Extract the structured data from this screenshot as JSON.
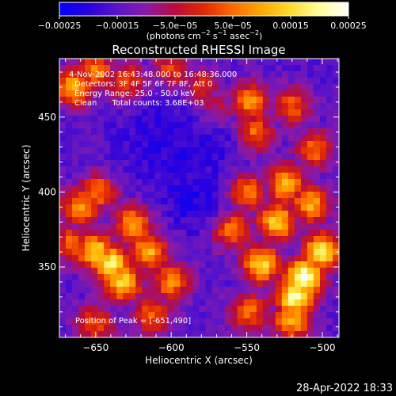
{
  "chart_data": {
    "type": "heatmap",
    "title": "Reconstructed RHESSI Image",
    "xlabel": "Heliocentric X (arcsec)",
    "ylabel": "Heliocentric Y (arcsec)",
    "xlim": [
      -674,
      -489
    ],
    "ylim": [
      303,
      489
    ],
    "x_ticks": [
      -650,
      -600,
      -550,
      -500
    ],
    "y_ticks": [
      350,
      400,
      450
    ],
    "x_tick_labels": [
      "−650",
      "−600",
      "−550",
      "−500"
    ],
    "y_tick_labels": [
      "350",
      "400",
      "450"
    ],
    "colorbar": {
      "range": [
        -0.00025,
        0.00025
      ],
      "ticks": [
        -0.00025,
        -0.00015,
        -5e-05,
        5e-05,
        0.00015,
        0.00025
      ],
      "tick_labels": [
        "−0.00025",
        "−0.00015",
        "−5.0e−05",
        "5.0e−05",
        "0.00015",
        "0.00025"
      ],
      "units_main": "(photons cm",
      "units_sup1": "−2",
      "units_mid1": " s",
      "units_sup2": "−1",
      "units_mid2": " asec",
      "units_sup3": "−2",
      "units_end": ")",
      "colormap": [
        "#0000ff",
        "#2a00dd",
        "#5a14c8",
        "#8a1aa8",
        "#b80c3c",
        "#e02a00",
        "#ff6a00",
        "#ffa800",
        "#ffdc30",
        "#ffff9a",
        "#ffffff"
      ]
    },
    "annotations": {
      "time_range": "4-Nov-2002 16:43:48.000 to 16:48:36.000",
      "detectors": "Detectors: 3F 4F 5F 6F 7F 8F, Att 0",
      "energy": "Energy Range: 25.0 - 50.0 keV",
      "clean": "Clean      Total counts: 3.68E+03",
      "peak": "Position of Peak = [-651,490]"
    },
    "image_level_note": "values are normalized color levels 0 (most negative, blue) to 1 (peak, white)",
    "bright_regions": [
      {
        "x": -512,
        "y": 343,
        "level": 0.97
      },
      {
        "x": -518,
        "y": 330,
        "level": 0.92
      },
      {
        "x": -500,
        "y": 360,
        "level": 0.85
      },
      {
        "x": -540,
        "y": 352,
        "level": 0.8
      },
      {
        "x": -530,
        "y": 380,
        "level": 0.78
      },
      {
        "x": -524,
        "y": 405,
        "level": 0.74
      },
      {
        "x": -508,
        "y": 392,
        "level": 0.7
      },
      {
        "x": -550,
        "y": 400,
        "level": 0.66
      },
      {
        "x": -560,
        "y": 375,
        "level": 0.64
      },
      {
        "x": -520,
        "y": 315,
        "level": 0.72
      },
      {
        "x": -548,
        "y": 320,
        "level": 0.6
      },
      {
        "x": -505,
        "y": 428,
        "level": 0.58
      },
      {
        "x": -545,
        "y": 440,
        "level": 0.62
      },
      {
        "x": -548,
        "y": 460,
        "level": 0.66
      },
      {
        "x": -520,
        "y": 457,
        "level": 0.56
      },
      {
        "x": -640,
        "y": 352,
        "level": 0.86
      },
      {
        "x": -650,
        "y": 360,
        "level": 0.8
      },
      {
        "x": -632,
        "y": 340,
        "level": 0.78
      },
      {
        "x": -615,
        "y": 360,
        "level": 0.72
      },
      {
        "x": -625,
        "y": 378,
        "level": 0.7
      },
      {
        "x": -600,
        "y": 340,
        "level": 0.64
      },
      {
        "x": -660,
        "y": 390,
        "level": 0.66
      },
      {
        "x": -665,
        "y": 365,
        "level": 0.6
      },
      {
        "x": -612,
        "y": 318,
        "level": 0.58
      },
      {
        "x": -650,
        "y": 312,
        "level": 0.55
      },
      {
        "x": -648,
        "y": 400,
        "level": 0.62
      },
      {
        "x": -665,
        "y": 470,
        "level": 0.7
      },
      {
        "x": -650,
        "y": 480,
        "level": 0.64
      },
      {
        "x": -630,
        "y": 474,
        "level": 0.56
      },
      {
        "x": -600,
        "y": 482,
        "level": 0.52
      },
      {
        "x": -580,
        "y": 470,
        "level": 0.5
      },
      {
        "x": -570,
        "y": 455,
        "level": 0.44
      },
      {
        "x": -590,
        "y": 415,
        "level": 0.4
      }
    ],
    "dark_regions": [
      {
        "x": -595,
        "y": 420,
        "level": 0.04
      },
      {
        "x": -605,
        "y": 440,
        "level": 0.08
      },
      {
        "x": -585,
        "y": 395,
        "level": 0.06
      },
      {
        "x": -620,
        "y": 430,
        "level": 0.12
      },
      {
        "x": -575,
        "y": 430,
        "level": 0.1
      }
    ],
    "background_level": 0.2
  },
  "footer": {
    "timestamp": "28-Apr-2022 18:33"
  }
}
